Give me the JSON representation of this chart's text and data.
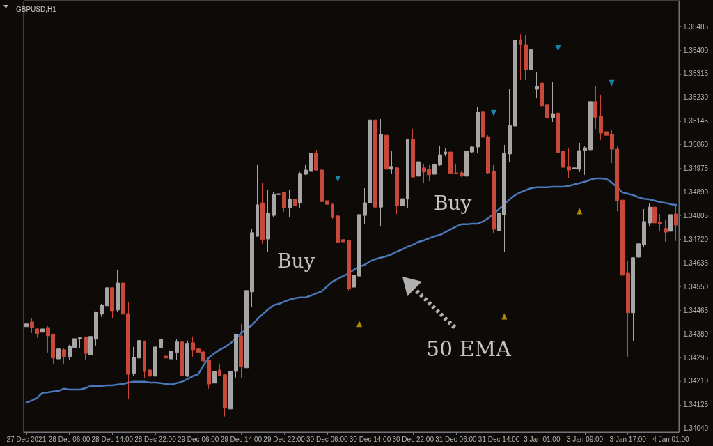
{
  "chart_data": {
    "type": "candlestick",
    "title": "GBPUSD,H1",
    "categories": [
      "27 Dec 2021",
      null,
      null,
      null,
      null,
      null,
      null,
      null,
      "28 Dec 06:00",
      null,
      null,
      null,
      null,
      null,
      null,
      null,
      "28 Dec 14:00",
      null,
      null,
      null,
      null,
      null,
      null,
      null,
      "28 Dec 22:00",
      null,
      null,
      null,
      null,
      null,
      null,
      null,
      "29 Dec 06:00",
      null,
      null,
      null,
      null,
      null,
      null,
      null,
      "29 Dec 14:00",
      null,
      null,
      null,
      null,
      null,
      null,
      null,
      "29 Dec 22:00",
      null,
      null,
      null,
      null,
      null,
      null,
      null,
      "30 Dec 06:00",
      null,
      null,
      null,
      null,
      null,
      null,
      null,
      "30 Dec 14:00",
      null,
      null,
      null,
      null,
      null,
      null,
      null,
      "30 Dec 22:00",
      null,
      null,
      null,
      null,
      null,
      null,
      null,
      "31 Dec 06:00",
      null,
      null,
      null,
      null,
      null,
      null,
      null,
      "31 Dec 14:00",
      null,
      null,
      null,
      null,
      null,
      null,
      null,
      "3 Jan 01:00",
      null,
      null,
      null,
      null,
      null,
      null,
      null,
      "3 Jan 09:00",
      null,
      null,
      null,
      null,
      null,
      null,
      null,
      "3 Jan 17:00",
      null,
      null,
      null,
      null,
      null,
      null,
      null,
      "4 Jan 01:00",
      null
    ],
    "ohlc": [
      [
        1.34406,
        1.34441,
        1.34358,
        1.34416
      ],
      [
        1.34423,
        1.34436,
        1.34383,
        1.34403
      ],
      [
        1.34398,
        1.34403,
        1.34366,
        1.34381
      ],
      [
        1.34386,
        1.34418,
        1.34378,
        1.34398
      ],
      [
        1.34403,
        1.34408,
        1.34313,
        1.34373
      ],
      [
        1.34378,
        1.34381,
        1.34273,
        1.34293
      ],
      [
        1.3429,
        1.34338,
        1.3427,
        1.34326
      ],
      [
        1.34323,
        1.34328,
        1.3427,
        1.34298
      ],
      [
        1.34298,
        1.34341,
        1.34288,
        1.34336
      ],
      [
        1.34331,
        1.34388,
        1.34323,
        1.34363
      ],
      [
        1.34363,
        1.34368,
        1.34328,
        1.34366
      ],
      [
        1.34368,
        1.34371,
        1.34288,
        1.3431
      ],
      [
        1.34305,
        1.34386,
        1.34295,
        1.34371
      ],
      [
        1.34361,
        1.34461,
        1.34338,
        1.34458
      ],
      [
        1.34451,
        1.34488,
        1.34441,
        1.34483
      ],
      [
        1.34481,
        1.34563,
        1.34466,
        1.34546
      ],
      [
        1.34546,
        1.34548,
        1.34436,
        1.34463
      ],
      [
        1.34466,
        1.34611,
        1.34458,
        1.34563
      ],
      [
        1.34563,
        1.34596,
        1.3431,
        1.34451
      ],
      [
        1.34453,
        1.34496,
        1.34145,
        1.34235
      ],
      [
        1.34238,
        1.34333,
        1.3423,
        1.34295
      ],
      [
        1.34293,
        1.34418,
        1.3429,
        1.34356
      ],
      [
        1.34353,
        1.34356,
        1.3422,
        1.34245
      ],
      [
        1.3425,
        1.34255,
        1.3422,
        1.34228
      ],
      [
        1.34228,
        1.34361,
        1.34225,
        1.34333
      ],
      [
        1.34331,
        1.34363,
        1.34328,
        1.34361
      ],
      [
        1.343,
        1.34363,
        1.34248,
        1.34293
      ],
      [
        1.3429,
        1.34341,
        1.34288,
        1.34318
      ],
      [
        1.34313,
        1.34361,
        1.34285,
        1.34351
      ],
      [
        1.34351,
        1.34361,
        1.34198,
        1.3423
      ],
      [
        1.34228,
        1.34356,
        1.34225,
        1.34346
      ],
      [
        1.34348,
        1.34371,
        1.34298,
        1.34323
      ],
      [
        1.34326,
        1.34328,
        1.34298,
        1.34313
      ],
      [
        1.34315,
        1.34318,
        1.34278,
        1.34283
      ],
      [
        1.34285,
        1.34288,
        1.34183,
        1.342
      ],
      [
        1.34203,
        1.34283,
        1.342,
        1.34245
      ],
      [
        1.3425,
        1.3427,
        1.34228,
        1.3423
      ],
      [
        1.34233,
        1.34235,
        1.34083,
        1.34113
      ],
      [
        1.3411,
        1.34248,
        1.34073,
        1.34245
      ],
      [
        1.34245,
        1.34381,
        1.34223,
        1.34378
      ],
      [
        1.34373,
        1.34416,
        1.34223,
        1.34263
      ],
      [
        1.34258,
        1.34616,
        1.34253,
        1.34536
      ],
      [
        1.34531,
        1.34759,
        1.34478,
        1.34744
      ],
      [
        1.34731,
        1.34987,
        1.34729,
        1.34844
      ],
      [
        1.34851,
        1.34922,
        1.34704,
        1.34719
      ],
      [
        1.34721,
        1.34899,
        1.34674,
        1.34814
      ],
      [
        1.34806,
        1.34889,
        1.34799,
        1.34881
      ],
      [
        1.34881,
        1.34897,
        1.34824,
        1.34884
      ],
      [
        1.34889,
        1.34892,
        1.34819,
        1.34834
      ],
      [
        1.34834,
        1.34897,
        1.34799,
        1.34864
      ],
      [
        1.34864,
        1.34884,
        1.34839,
        1.34841
      ],
      [
        1.34851,
        1.34962,
        1.34834,
        1.34957
      ],
      [
        1.34954,
        1.34987,
        1.34952,
        1.34969
      ],
      [
        1.34964,
        1.35042,
        1.34947,
        1.35029
      ],
      [
        1.35029,
        1.35042,
        1.34967,
        1.34969
      ],
      [
        1.34969,
        1.34972,
        1.34854,
        1.34856
      ],
      [
        1.34859,
        1.34897,
        1.34839,
        1.34846
      ],
      [
        1.34846,
        1.34849,
        1.34794,
        1.34799
      ],
      [
        1.34804,
        1.34806,
        1.34706,
        1.34709
      ],
      [
        1.34719,
        1.34761,
        1.34629,
        1.34711
      ],
      [
        1.34716,
        1.34719,
        1.34536,
        1.34543
      ],
      [
        1.34548,
        1.34629,
        1.34536,
        1.34591
      ],
      [
        1.34588,
        1.34824,
        1.34571,
        1.34809
      ],
      [
        1.34806,
        1.34904,
        1.34774,
        1.34851
      ],
      [
        1.34851,
        1.35154,
        1.34849,
        1.35149
      ],
      [
        1.35149,
        1.35152,
        1.34831,
        1.34836
      ],
      [
        1.34836,
        1.35152,
        1.34766,
        1.35097
      ],
      [
        1.35094,
        1.35205,
        1.34912,
        1.34972
      ],
      [
        1.34972,
        1.35037,
        1.34954,
        1.34982
      ],
      [
        1.34977,
        1.34979,
        1.34811,
        1.34841
      ],
      [
        1.34841,
        1.34871,
        1.34784,
        1.34866
      ],
      [
        1.34866,
        1.35082,
        1.34834,
        1.35079
      ],
      [
        1.35079,
        1.35117,
        1.34939,
        1.34944
      ],
      [
        1.34947,
        1.35034,
        1.34924,
        1.34999
      ],
      [
        1.34977,
        1.34992,
        1.34924,
        1.34962
      ],
      [
        1.34972,
        1.34987,
        1.34929,
        1.34952
      ],
      [
        1.34954,
        1.34997,
        1.34949,
        1.34989
      ],
      [
        1.34987,
        1.35057,
        1.34984,
        1.35024
      ],
      [
        1.35027,
        1.35049,
        1.35019,
        1.35034
      ],
      [
        1.35034,
        1.35037,
        1.34937,
        1.34957
      ],
      [
        1.34959,
        1.34992,
        1.34954,
        1.34957
      ],
      [
        1.34959,
        1.34964,
        1.34944,
        1.34949
      ],
      [
        1.34947,
        1.35042,
        1.34924,
        1.35037
      ],
      [
        1.35034,
        1.35054,
        1.35032,
        1.35052
      ],
      [
        1.35052,
        1.35195,
        1.35029,
        1.35177
      ],
      [
        1.3518,
        1.35187,
        1.35054,
        1.35087
      ],
      [
        1.35089,
        1.35094,
        1.34954,
        1.34959
      ],
      [
        1.34964,
        1.34987,
        1.34741,
        1.34756
      ],
      [
        1.34751,
        1.34897,
        1.34641,
        1.34814
      ],
      [
        1.34809,
        1.35059,
        1.34674,
        1.35029
      ],
      [
        1.35027,
        1.3526,
        1.34997,
        1.35129
      ],
      [
        1.35127,
        1.3546,
        1.35017,
        1.35435
      ],
      [
        1.35437,
        1.35457,
        1.35292,
        1.35422
      ],
      [
        1.3542,
        1.35455,
        1.35292,
        1.3533
      ],
      [
        1.3533,
        1.35432,
        1.35282,
        1.35402
      ],
      [
        1.3526,
        1.35322,
        1.35227,
        1.3527
      ],
      [
        1.35282,
        1.35312,
        1.35192,
        1.352
      ],
      [
        1.35205,
        1.35247,
        1.35152,
        1.35157
      ],
      [
        1.35157,
        1.35287,
        1.35142,
        1.35172
      ],
      [
        1.35174,
        1.35177,
        1.35027,
        1.35032
      ],
      [
        1.35037,
        1.35059,
        1.34937,
        1.34979
      ],
      [
        1.34982,
        1.35049,
        1.34939,
        1.34969
      ],
      [
        1.34974,
        1.34997,
        1.34939,
        1.34977
      ],
      [
        1.34972,
        1.35067,
        1.34962,
        1.35039
      ],
      [
        1.35039,
        1.35054,
        1.34952,
        1.35049
      ],
      [
        1.35042,
        1.35222,
        1.35017,
        1.35215
      ],
      [
        1.35215,
        1.35272,
        1.35117,
        1.35159
      ],
      [
        1.35162,
        1.3524,
        1.35077,
        1.35102
      ],
      [
        1.35107,
        1.35212,
        1.35089,
        1.35094
      ],
      [
        1.35097,
        1.35114,
        1.34994,
        1.35044
      ],
      [
        1.35044,
        1.35054,
        1.34821,
        1.34859
      ],
      [
        1.34861,
        1.34912,
        1.34536,
        1.34591
      ],
      [
        1.34598,
        1.34641,
        1.34298,
        1.34456
      ],
      [
        1.34456,
        1.34656,
        1.34353,
        1.34654
      ],
      [
        1.34656,
        1.34711,
        1.34646,
        1.34704
      ],
      [
        1.34701,
        1.34829,
        1.34691,
        1.34784
      ],
      [
        1.34779,
        1.34849,
        1.34766,
        1.34836
      ],
      [
        1.34836,
        1.34846,
        1.34729,
        1.34779
      ],
      [
        1.34781,
        1.34811,
        1.34749,
        1.34776
      ],
      [
        1.34759,
        1.34789,
        1.34711,
        1.34746
      ],
      [
        1.34749,
        1.34841,
        1.34744,
        1.34809
      ],
      [
        1.34811,
        1.34841,
        1.34714,
        1.34771
      ]
    ],
    "colors": [
      "#a6a6a6",
      "#c8493a",
      "#c8493a",
      "#a6a6a6",
      "#c8493a",
      "#c8493a",
      "#a6a6a6",
      "#c8493a",
      "#a6a6a6",
      "#a6a6a6",
      "#a6a6a6",
      "#c8493a",
      "#a6a6a6",
      "#a6a6a6",
      "#a6a6a6",
      "#a6a6a6",
      "#c8493a",
      "#a6a6a6",
      "#c8493a",
      "#c8493a",
      "#a6a6a6",
      "#a6a6a6",
      "#c8493a",
      "#c8493a",
      "#a6a6a6",
      "#a6a6a6",
      "#c8493a",
      "#a6a6a6",
      "#a6a6a6",
      "#c8493a",
      "#a6a6a6",
      "#c8493a",
      "#c8493a",
      "#c8493a",
      "#c8493a",
      "#a6a6a6",
      "#c8493a",
      "#c8493a",
      "#a6a6a6",
      "#a6a6a6",
      "#c8493a",
      "#a6a6a6",
      "#a6a6a6",
      "#a6a6a6",
      "#c8493a",
      "#a6a6a6",
      "#a6a6a6",
      "#a6a6a6",
      "#c8493a",
      "#a6a6a6",
      "#c8493a",
      "#a6a6a6",
      "#a6a6a6",
      "#a6a6a6",
      "#c8493a",
      "#c8493a",
      "#c8493a",
      "#c8493a",
      "#c8493a",
      "#c8493a",
      "#c8493a",
      "#a6a6a6",
      "#a6a6a6",
      "#a6a6a6",
      "#a6a6a6",
      "#c8493a",
      "#a6a6a6",
      "#c8493a",
      "#a6a6a6",
      "#c8493a",
      "#a6a6a6",
      "#a6a6a6",
      "#c8493a",
      "#a6a6a6",
      "#c8493a",
      "#c8493a",
      "#a6a6a6",
      "#a6a6a6",
      "#a6a6a6",
      "#c8493a",
      "#c8493a",
      "#c8493a",
      "#a6a6a6",
      "#a6a6a6",
      "#a6a6a6",
      "#c8493a",
      "#c8493a",
      "#c8493a",
      "#a6a6a6",
      "#a6a6a6",
      "#a6a6a6",
      "#a6a6a6",
      "#c8493a",
      "#c8493a",
      "#a6a6a6",
      "#a6a6a6",
      "#c8493a",
      "#c8493a",
      "#a6a6a6",
      "#c8493a",
      "#c8493a",
      "#c8493a",
      "#a6a6a6",
      "#a6a6a6",
      "#a6a6a6",
      "#a6a6a6",
      "#c8493a",
      "#c8493a",
      "#c8493a",
      "#c8493a",
      "#c8493a",
      "#c8493a",
      "#c8493a",
      "#a6a6a6",
      "#a6a6a6",
      "#a6a6a6",
      "#a6a6a6",
      "#c8493a",
      "#c8493a",
      "#c8493a",
      "#a6a6a6",
      "#c8493a"
    ],
    "series": [
      {
        "type": "line",
        "color": "#4a78b8",
        "values": [
          1.34133,
          1.3414,
          1.3415,
          1.34168,
          1.3417,
          1.34173,
          1.34175,
          1.34183,
          1.3418,
          1.3418,
          1.3418,
          1.34185,
          1.34193,
          1.34193,
          1.34193,
          1.34195,
          1.34195,
          1.34198,
          1.342,
          1.34205,
          1.34208,
          1.34208,
          1.34208,
          1.34205,
          1.34205,
          1.34203,
          1.342,
          1.34198,
          1.34203,
          1.34208,
          1.34218,
          1.34228,
          1.34235,
          1.34268,
          1.34295,
          1.3431,
          1.34323,
          1.34333,
          1.34346,
          1.34363,
          1.34383,
          1.34398,
          1.34411,
          1.34433,
          1.34451,
          1.34468,
          1.34483,
          1.34488,
          1.34496,
          1.34503,
          1.34508,
          1.34511,
          1.34511,
          1.34518,
          1.34526,
          1.34533,
          1.34551,
          1.34568,
          1.34578,
          1.34588,
          1.34598,
          1.34611,
          1.34621,
          1.34629,
          1.34641,
          1.34649,
          1.34654,
          1.34659,
          1.34666,
          1.34676,
          1.34684,
          1.34694,
          1.34701,
          1.34711,
          1.34716,
          1.34724,
          1.34731,
          1.34736,
          1.34746,
          1.34756,
          1.34766,
          1.34774,
          1.34774,
          1.34776,
          1.34776,
          1.34784,
          1.34796,
          1.34811,
          1.34829,
          1.34846,
          1.34864,
          1.34879,
          1.34889,
          1.34897,
          1.34904,
          1.34907,
          1.34907,
          1.34907,
          1.34909,
          1.34909,
          1.34909,
          1.34912,
          1.34917,
          1.34922,
          1.34927,
          1.34934,
          1.34939,
          1.34939,
          1.34937,
          1.34924,
          1.34907,
          1.34889,
          1.34884,
          1.34879,
          1.34871,
          1.34866,
          1.34864,
          1.34859,
          1.34854,
          1.34851,
          1.34846,
          1.34844
        ]
      },
      {
        "type": "scatter",
        "color": "#e0a800",
        "marker": "triangle",
        "values": [
          null,
          null,
          null,
          null,
          null,
          null,
          null,
          null,
          null,
          null,
          null,
          null,
          null,
          null,
          null,
          null,
          null,
          null,
          null,
          null,
          null,
          null,
          null,
          null,
          null,
          null,
          null,
          null,
          null,
          null,
          null,
          null,
          null,
          null,
          null,
          null,
          null,
          null,
          null,
          null,
          null,
          null,
          null,
          null,
          null,
          null,
          null,
          null,
          null,
          null,
          null,
          null,
          null,
          null,
          null,
          null,
          null,
          null,
          null,
          null,
          null,
          null,
          1.34416,
          null,
          null,
          null,
          null,
          null,
          null,
          null,
          null,
          null,
          null,
          null,
          null,
          null,
          null,
          null,
          null,
          null,
          null,
          null,
          null,
          null,
          null,
          null,
          null,
          null,
          null,
          1.34443,
          null,
          null,
          null,
          null,
          null,
          null,
          null,
          null,
          null,
          null,
          null,
          null,
          null,
          1.34821,
          null,
          null,
          null,
          null,
          null,
          null,
          null,
          null,
          null,
          null,
          null,
          null,
          null,
          null,
          null,
          null,
          null,
          null
        ]
      },
      {
        "type": "scatter",
        "color": "#1aa3d6",
        "marker": "triangle",
        "values": [
          null,
          null,
          null,
          null,
          null,
          null,
          null,
          null,
          null,
          null,
          null,
          null,
          null,
          null,
          null,
          null,
          null,
          null,
          null,
          null,
          null,
          null,
          null,
          null,
          null,
          null,
          null,
          null,
          null,
          null,
          null,
          null,
          null,
          null,
          null,
          null,
          null,
          null,
          null,
          null,
          null,
          null,
          null,
          null,
          null,
          null,
          null,
          null,
          null,
          null,
          null,
          null,
          null,
          null,
          null,
          null,
          null,
          null,
          1.34937,
          null,
          null,
          null,
          null,
          null,
          null,
          null,
          null,
          null,
          null,
          null,
          null,
          null,
          null,
          null,
          null,
          null,
          null,
          null,
          null,
          null,
          null,
          null,
          null,
          null,
          null,
          null,
          null,
          1.35174,
          null,
          null,
          null,
          null,
          null,
          null,
          null,
          null,
          null,
          null,
          null,
          1.35407,
          null,
          null,
          null,
          null,
          null,
          null,
          null,
          null,
          null,
          1.35282,
          null,
          null,
          null,
          null,
          null,
          null,
          null,
          null,
          null,
          null,
          null,
          null
        ]
      }
    ],
    "ylim": [
      1.34027,
      1.35578
    ],
    "yticks": [
      {
        "value": 1.3404,
        "label": "1.34040"
      },
      {
        "value": 1.34125,
        "label": "1.34125"
      },
      {
        "value": 1.3421,
        "label": "1.34210"
      },
      {
        "value": 1.34295,
        "label": "1.34295"
      },
      {
        "value": 1.3438,
        "label": "1.34380"
      },
      {
        "value": 1.34465,
        "label": "1.34465"
      },
      {
        "value": 1.3455,
        "label": "1.34550"
      },
      {
        "value": 1.34635,
        "label": "1.34635"
      },
      {
        "value": 1.3472,
        "label": "1.34720"
      },
      {
        "value": 1.34805,
        "label": "1.34805"
      },
      {
        "value": 1.3489,
        "label": "1.34890"
      },
      {
        "value": 1.34975,
        "label": "1.34975"
      },
      {
        "value": 1.3506,
        "label": "1.35060"
      },
      {
        "value": 1.35145,
        "label": "1.35145"
      },
      {
        "value": 1.3523,
        "label": "1.35230"
      },
      {
        "value": 1.35315,
        "label": "1.35315"
      },
      {
        "value": 1.354,
        "label": "1.35400"
      },
      {
        "value": 1.35485,
        "label": "1.35485"
      }
    ],
    "annotations": [
      "Buy",
      "Buy",
      "50 EMA"
    ]
  }
}
